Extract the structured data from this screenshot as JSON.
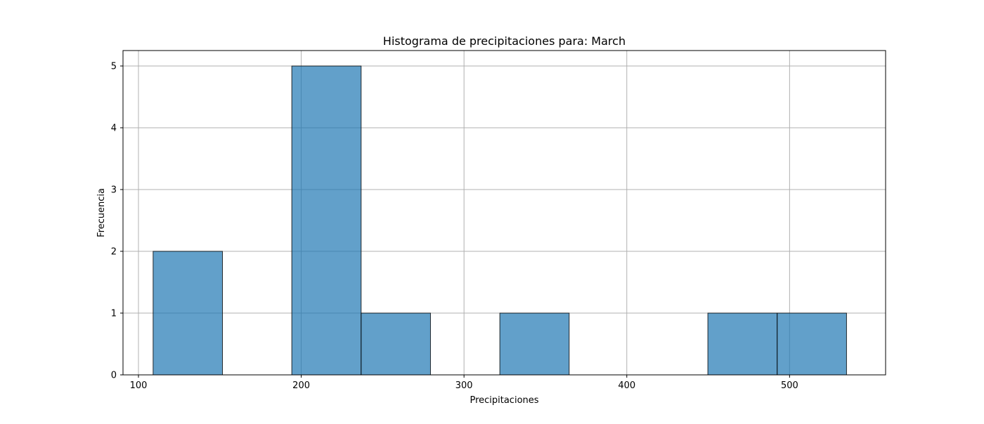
{
  "chart_data": {
    "type": "bar",
    "title": "Histograma de precipitaciones para: March",
    "xlabel": "Precipitaciones",
    "ylabel": "Frecuencia",
    "xlim": [
      90.5,
      559
    ],
    "ylim": [
      0,
      5.25
    ],
    "xticks": [
      100,
      200,
      300,
      400,
      500
    ],
    "yticks": [
      0,
      1,
      2,
      3,
      4,
      5
    ],
    "grid": true,
    "bar_color": "#1f77b4",
    "bar_opacity": 0.7,
    "edge_color": "#000000",
    "bins": [
      {
        "start": 109.0,
        "end": 151.6,
        "count": 2
      },
      {
        "start": 151.6,
        "end": 194.2,
        "count": 0
      },
      {
        "start": 194.2,
        "end": 236.8,
        "count": 5
      },
      {
        "start": 236.8,
        "end": 279.4,
        "count": 1
      },
      {
        "start": 279.4,
        "end": 322.0,
        "count": 0
      },
      {
        "start": 322.0,
        "end": 364.6,
        "count": 1
      },
      {
        "start": 364.6,
        "end": 407.2,
        "count": 0
      },
      {
        "start": 407.2,
        "end": 449.8,
        "count": 0
      },
      {
        "start": 449.8,
        "end": 492.4,
        "count": 1
      },
      {
        "start": 492.4,
        "end": 535.0,
        "count": 1
      }
    ]
  }
}
